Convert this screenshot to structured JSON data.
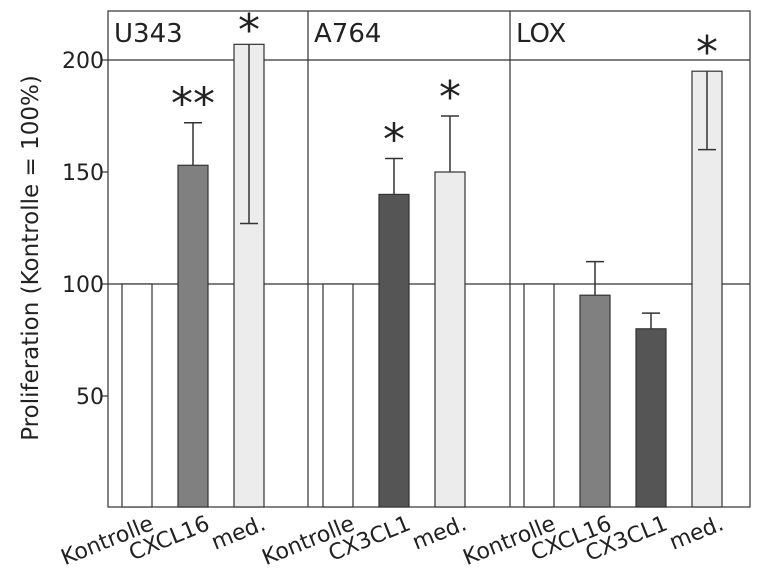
{
  "chart_data": {
    "type": "bar",
    "ylabel": "Proliferation (Kontrolle = 100%)",
    "ylim": [
      0,
      220
    ],
    "yticks": [
      50,
      100,
      150,
      200
    ],
    "reference_lines": [
      100,
      200
    ],
    "legend": "none",
    "panels": [
      {
        "label": "U343",
        "bars": [
          {
            "category": "Kontrolle",
            "value": 100,
            "color": "#ffffff",
            "err_low": null,
            "err_high": null,
            "sig": ""
          },
          {
            "category": "CXCL16",
            "value": 153,
            "color": "#808080",
            "err_low": 153,
            "err_high": 172,
            "sig": "**"
          },
          {
            "category": "med.",
            "value": 207,
            "color": "#ececec",
            "err_low": 127,
            "err_high": 207,
            "sig": "*"
          }
        ]
      },
      {
        "label": "A764",
        "bars": [
          {
            "category": "Kontrolle",
            "value": 100,
            "color": "#ffffff",
            "err_low": null,
            "err_high": null,
            "sig": ""
          },
          {
            "category": "CX3CL1",
            "value": 140,
            "color": "#555555",
            "err_low": 140,
            "err_high": 156,
            "sig": "*"
          },
          {
            "category": "med.",
            "value": 150,
            "color": "#ececec",
            "err_low": 150,
            "err_high": 175,
            "sig": "*"
          }
        ]
      },
      {
        "label": "LOX",
        "bars": [
          {
            "category": "Kontrolle",
            "value": 100,
            "color": "#ffffff",
            "err_low": null,
            "err_high": null,
            "sig": ""
          },
          {
            "category": "CXCL16",
            "value": 95,
            "color": "#808080",
            "err_low": 95,
            "err_high": 110,
            "sig": ""
          },
          {
            "category": "CX3CL1",
            "value": 80,
            "color": "#555555",
            "err_low": 80,
            "err_high": 87,
            "sig": ""
          },
          {
            "category": "med.",
            "value": 195,
            "color": "#ececec",
            "err_low": 160,
            "err_high": 195,
            "sig": "*"
          }
        ]
      }
    ]
  }
}
